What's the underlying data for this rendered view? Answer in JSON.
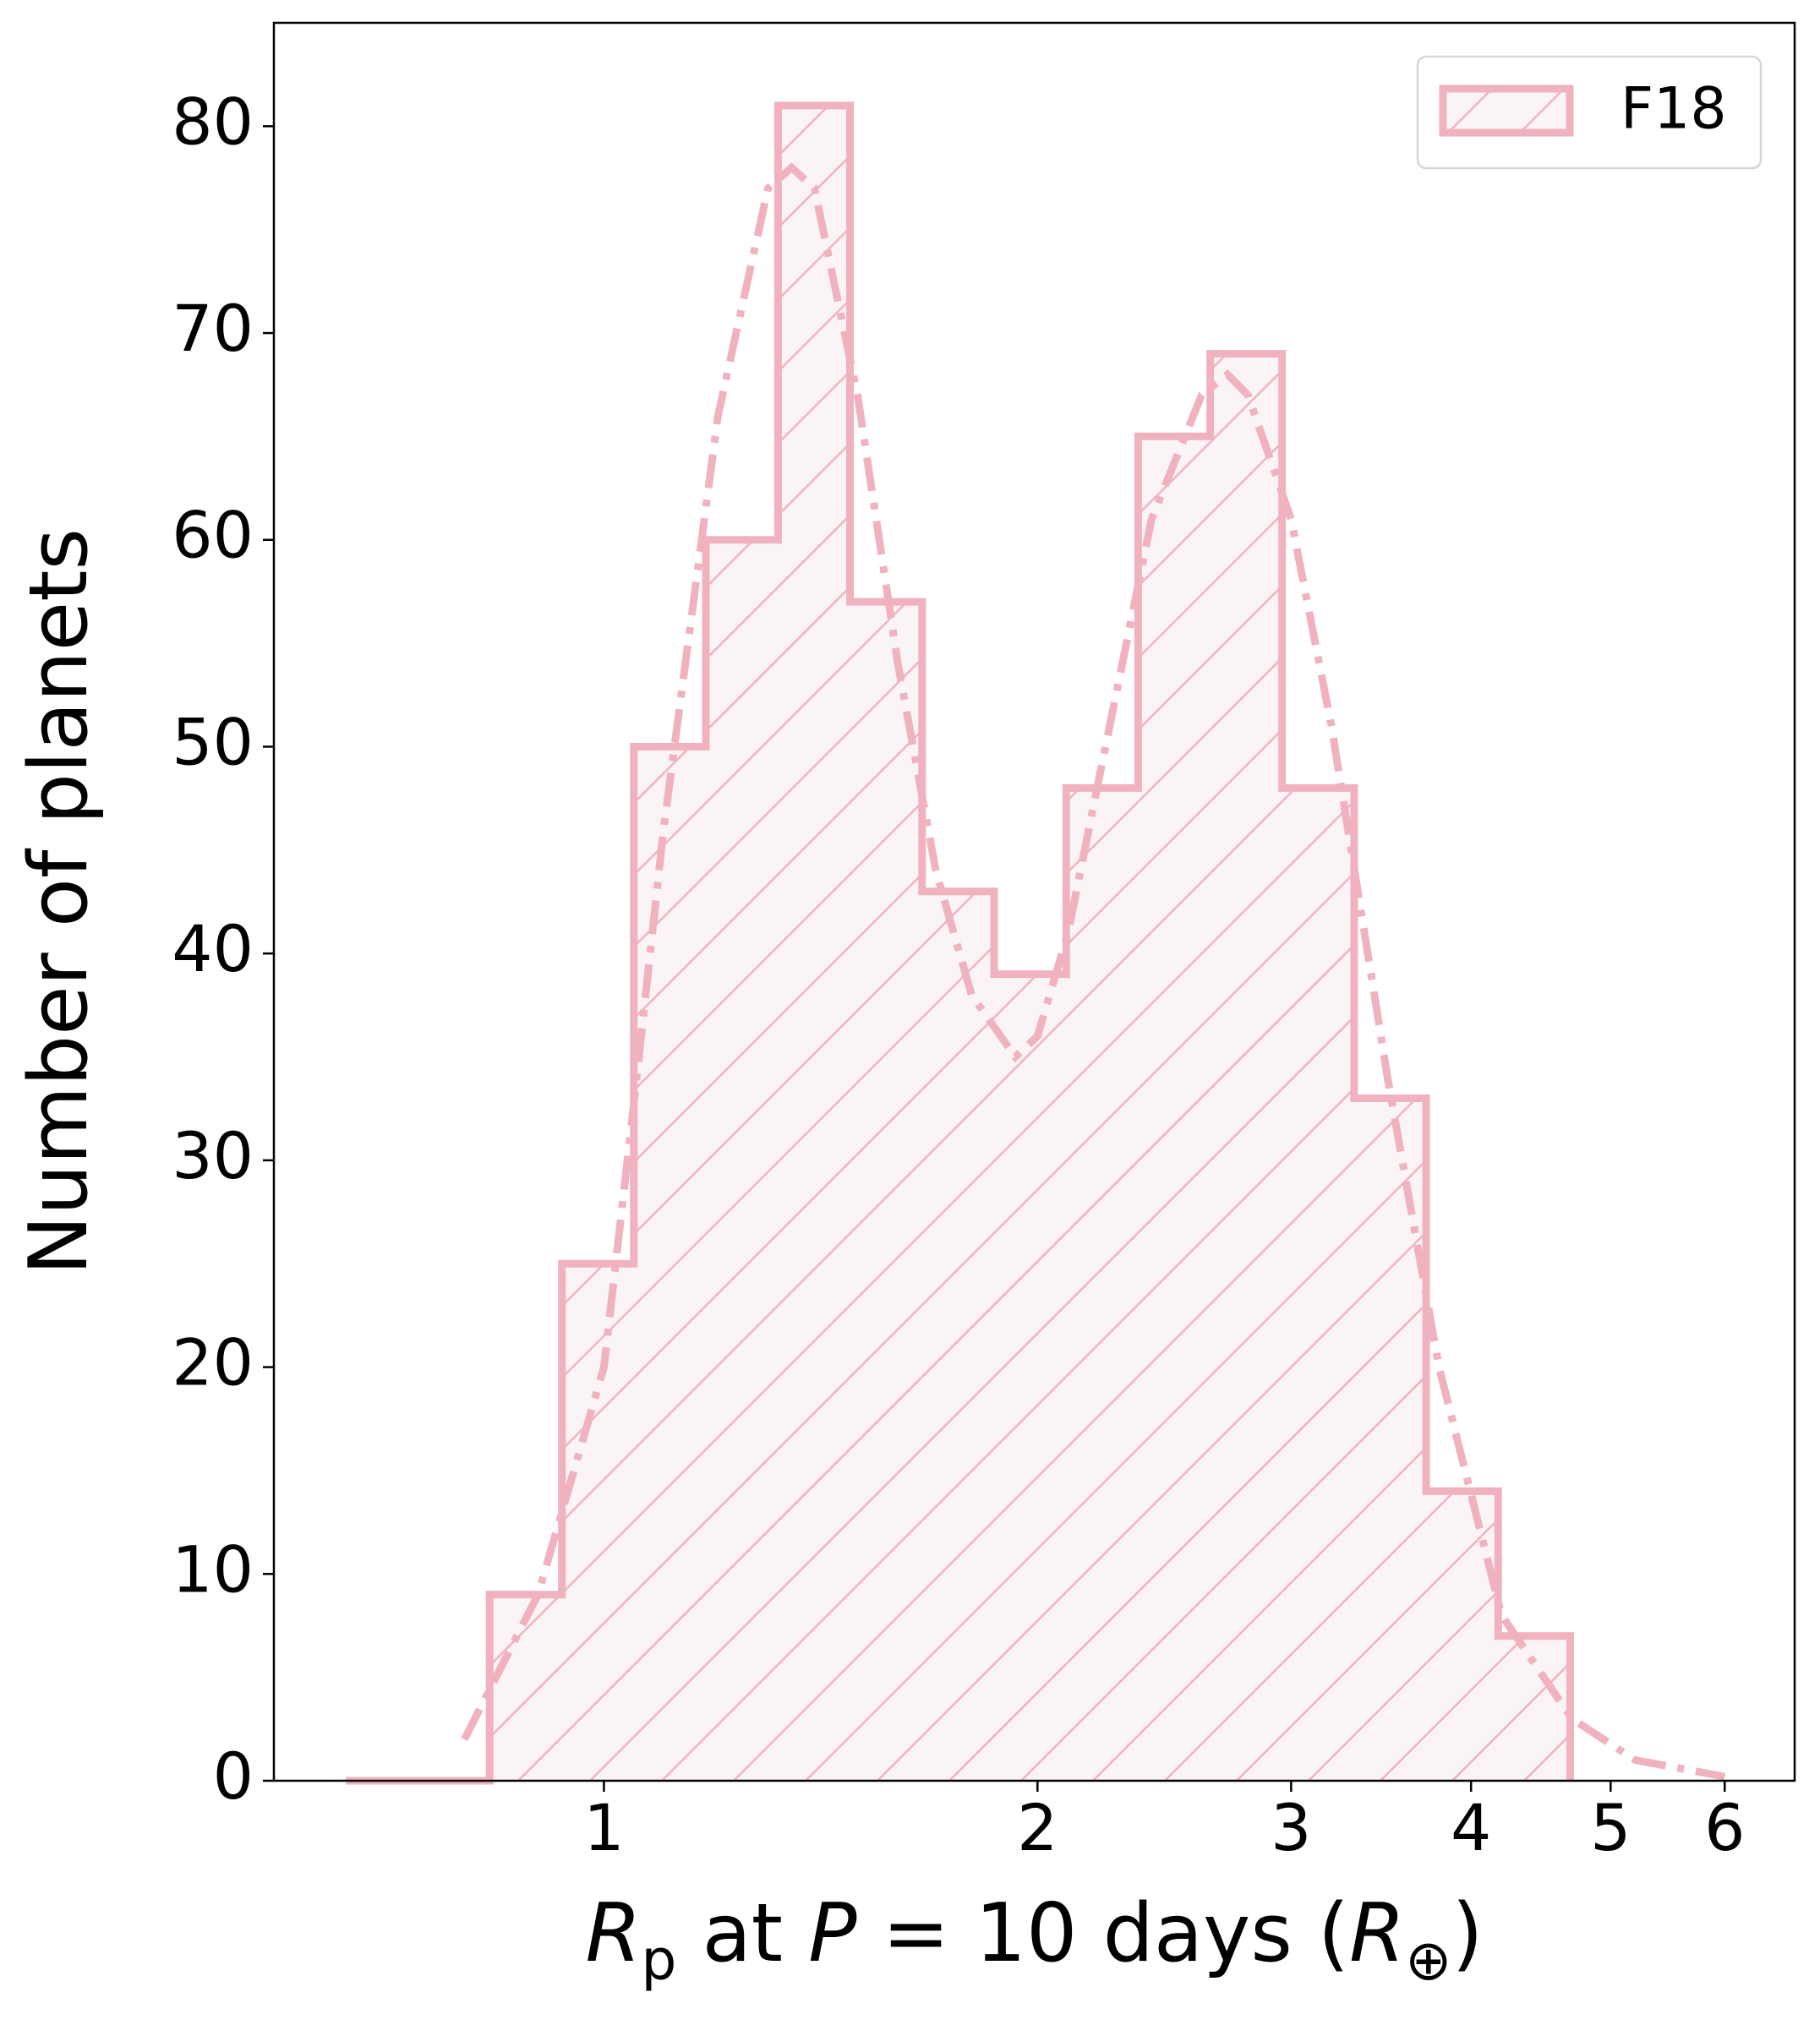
{
  "chart_data": {
    "type": "histogram",
    "bins": [
      0.662,
      0.743,
      0.833,
      0.935,
      1.049,
      1.177,
      1.321,
      1.482,
      1.663,
      1.866,
      2.094,
      2.349,
      2.636,
      2.957,
      3.318,
      3.723,
      4.177,
      4.687
    ],
    "counts": [
      0,
      0,
      9,
      25,
      50,
      60,
      81,
      57,
      43,
      39,
      48,
      65,
      69,
      48,
      33,
      14,
      7
    ],
    "name": "F18",
    "color": "#f0b2bf",
    "fill_color": "#fbf4f6",
    "hatch": "/",
    "fit": {
      "x": [
        0.8,
        0.9,
        1.0,
        1.05,
        1.1,
        1.2,
        1.3,
        1.35,
        1.4,
        1.5,
        1.6,
        1.7,
        1.8,
        1.93,
        2.0,
        2.1,
        2.2,
        2.4,
        2.6,
        2.71,
        2.8,
        3.0,
        3.2,
        3.5,
        3.8,
        4.2,
        4.7,
        5.2,
        6.0
      ],
      "y": [
        2,
        9,
        20,
        33,
        46,
        66,
        77,
        78,
        77,
        67,
        54,
        44,
        38,
        35,
        36,
        41,
        48,
        61,
        67,
        68,
        67,
        61,
        51,
        34,
        20,
        8,
        3,
        1,
        0.2
      ]
    },
    "xlabel": [
      "R",
      "p",
      " at ",
      "P",
      " = 10 days (",
      "R",
      "⊕",
      ")"
    ],
    "ylabel": "Number of planets",
    "xscale": "log",
    "xlim": [
      0.59,
      6.71
    ],
    "xticks": [
      1,
      2,
      3,
      4,
      5,
      6
    ],
    "ylim": [
      0,
      85
    ],
    "yticks": [
      0,
      10,
      20,
      30,
      40,
      50,
      60,
      70,
      80
    ],
    "legend": "upper right"
  }
}
